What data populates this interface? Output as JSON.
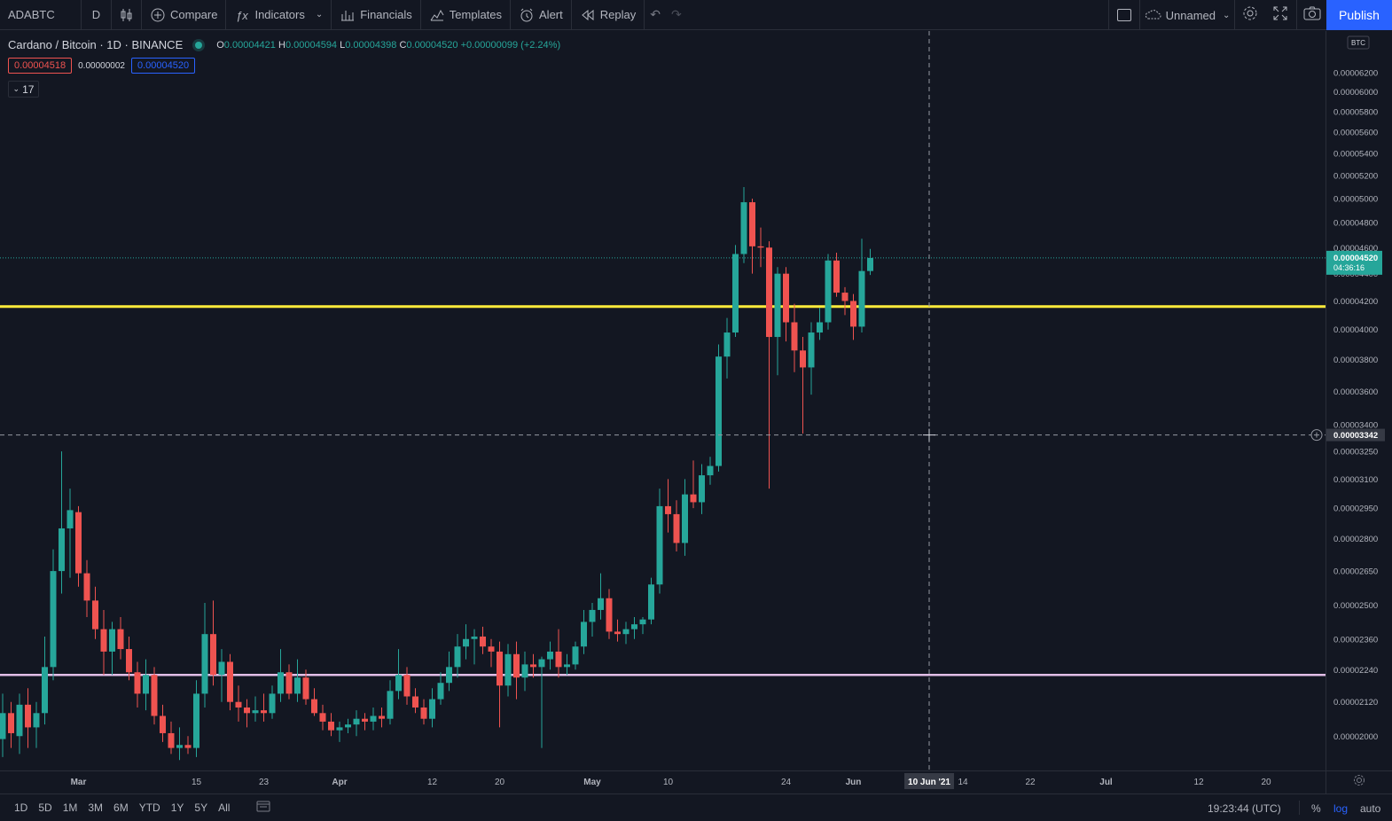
{
  "toolbar": {
    "symbol": "ADABTC",
    "interval": "D",
    "compare": "Compare",
    "indicators": "Indicators",
    "financials": "Financials",
    "templates": "Templates",
    "alert": "Alert",
    "replay": "Replay",
    "layout_name": "Unnamed",
    "publish": "Publish"
  },
  "legend": {
    "title": "Cardano / Bitcoin · 1D · BINANCE",
    "o_label": "O",
    "o": "0.00004421",
    "h_label": "H",
    "h": "0.00004594",
    "l_label": "L",
    "l": "0.00004398",
    "c_label": "C",
    "c": "0.00004520",
    "change": "+0.00000099 (+2.24%)",
    "sell": "0.00004518",
    "spread": "0.00000002",
    "buy": "0.00004520",
    "collapse_count": "17"
  },
  "price_axis": {
    "currency": "BTC",
    "current_price": "0.00004520",
    "countdown": "04:36:16",
    "crosshair_price": "0.00003342"
  },
  "time_axis": {
    "crosshair_date": "10 Jun '21"
  },
  "bottom_bar": {
    "ranges": [
      "1D",
      "5D",
      "1M",
      "3M",
      "6M",
      "YTD",
      "1Y",
      "5Y",
      "All"
    ],
    "clock": "19:23:44 (UTC)",
    "percent": "%",
    "log": "log",
    "auto": "auto"
  },
  "colors": {
    "up": "#26a69a",
    "down": "#ef5350",
    "background": "#131722",
    "support_line": "#ffeb3b",
    "lower_line": "#e1bee7",
    "accent": "#2962ff"
  },
  "chart_data": {
    "type": "candlestick",
    "scale": "log",
    "ylim": [
      1.95e-05,
      6.35e-05
    ],
    "y_ticks": [
      "0.00006200",
      "0.00006000",
      "0.00005800",
      "0.00005600",
      "0.00005400",
      "0.00005200",
      "0.00005000",
      "0.00004800",
      "0.00004600",
      "0.00004400",
      "0.00004200",
      "0.00004000",
      "0.00003800",
      "0.00003600",
      "0.00003400",
      "0.00003250",
      "0.00003100",
      "0.00002950",
      "0.00002800",
      "0.00002650",
      "0.00002500",
      "0.00002360",
      "0.00002240",
      "0.00002120",
      "0.00002000"
    ],
    "x_ticks": [
      {
        "label": "Mar",
        "date": "2021-03-01"
      },
      {
        "label": "15",
        "date": "2021-03-15"
      },
      {
        "label": "23",
        "date": "2021-03-23"
      },
      {
        "label": "Apr",
        "date": "2021-04-01"
      },
      {
        "label": "12",
        "date": "2021-04-12"
      },
      {
        "label": "20",
        "date": "2021-04-20"
      },
      {
        "label": "May",
        "date": "2021-05-01"
      },
      {
        "label": "10",
        "date": "2021-05-10"
      },
      {
        "label": "24",
        "date": "2021-05-24"
      },
      {
        "label": "Jun",
        "date": "2021-06-01"
      },
      {
        "label": "14",
        "date": "2021-06-14"
      },
      {
        "label": "22",
        "date": "2021-06-22"
      },
      {
        "label": "Jul",
        "date": "2021-07-01"
      },
      {
        "label": "12",
        "date": "2021-07-12"
      },
      {
        "label": "20",
        "date": "2021-07-20"
      }
    ],
    "horizontal_lines": [
      {
        "price": 4.16e-05,
        "color": "#ffeb3b"
      },
      {
        "price": 2.22e-05,
        "color": "#e1bee7"
      }
    ],
    "candles": [
      {
        "date": "2021-02-20",
        "o": 1.99e-05,
        "h": 2.15e-05,
        "l": 1.93e-05,
        "c": 2.08e-05
      },
      {
        "date": "2021-02-21",
        "o": 2.08e-05,
        "h": 2.12e-05,
        "l": 1.96e-05,
        "c": 2.01e-05
      },
      {
        "date": "2021-02-22",
        "o": 2e-05,
        "h": 2.15e-05,
        "l": 1.94e-05,
        "c": 2.11e-05
      },
      {
        "date": "2021-02-23",
        "o": 2.11e-05,
        "h": 2.17e-05,
        "l": 1.96e-05,
        "c": 2.03e-05
      },
      {
        "date": "2021-02-24",
        "o": 2.03e-05,
        "h": 2.12e-05,
        "l": 1.96e-05,
        "c": 2.08e-05
      },
      {
        "date": "2021-02-25",
        "o": 2.08e-05,
        "h": 2.37e-05,
        "l": 2.04e-05,
        "c": 2.25e-05
      },
      {
        "date": "2021-02-26",
        "o": 2.25e-05,
        "h": 2.75e-05,
        "l": 2.2e-05,
        "c": 2.65e-05
      },
      {
        "date": "2021-02-27",
        "o": 2.65e-05,
        "h": 3.25e-05,
        "l": 2.55e-05,
        "c": 2.85e-05
      },
      {
        "date": "2021-02-28",
        "o": 2.85e-05,
        "h": 3.05e-05,
        "l": 2.62e-05,
        "c": 2.94e-05
      },
      {
        "date": "2021-03-01",
        "o": 2.93e-05,
        "h": 2.96e-05,
        "l": 2.58e-05,
        "c": 2.64e-05
      },
      {
        "date": "2021-03-02",
        "o": 2.64e-05,
        "h": 2.7e-05,
        "l": 2.45e-05,
        "c": 2.52e-05
      },
      {
        "date": "2021-03-03",
        "o": 2.52e-05,
        "h": 2.58e-05,
        "l": 2.36e-05,
        "c": 2.4e-05
      },
      {
        "date": "2021-03-04",
        "o": 2.4e-05,
        "h": 2.48e-05,
        "l": 2.22e-05,
        "c": 2.31e-05
      },
      {
        "date": "2021-03-05",
        "o": 2.31e-05,
        "h": 2.43e-05,
        "l": 2.22e-05,
        "c": 2.4e-05
      },
      {
        "date": "2021-03-06",
        "o": 2.4e-05,
        "h": 2.45e-05,
        "l": 2.28e-05,
        "c": 2.32e-05
      },
      {
        "date": "2021-03-07",
        "o": 2.32e-05,
        "h": 2.37e-05,
        "l": 2.2e-05,
        "c": 2.23e-05
      },
      {
        "date": "2021-03-08",
        "o": 2.23e-05,
        "h": 2.27e-05,
        "l": 2.1e-05,
        "c": 2.15e-05
      },
      {
        "date": "2021-03-09",
        "o": 2.15e-05,
        "h": 2.28e-05,
        "l": 2.09e-05,
        "c": 2.22e-05
      },
      {
        "date": "2021-03-10",
        "o": 2.22e-05,
        "h": 2.25e-05,
        "l": 2.04e-05,
        "c": 2.07e-05
      },
      {
        "date": "2021-03-11",
        "o": 2.07e-05,
        "h": 2.11e-05,
        "l": 1.98e-05,
        "c": 2.01e-05
      },
      {
        "date": "2021-03-12",
        "o": 2.01e-05,
        "h": 2.05e-05,
        "l": 1.94e-05,
        "c": 1.96e-05
      },
      {
        "date": "2021-03-13",
        "o": 1.96e-05,
        "h": 2.03e-05,
        "l": 1.92e-05,
        "c": 1.97e-05
      },
      {
        "date": "2021-03-14",
        "o": 1.97e-05,
        "h": 2e-05,
        "l": 1.94e-05,
        "c": 1.96e-05
      },
      {
        "date": "2021-03-15",
        "o": 1.96e-05,
        "h": 2.2e-05,
        "l": 1.93e-05,
        "c": 2.15e-05
      },
      {
        "date": "2021-03-16",
        "o": 2.15e-05,
        "h": 2.51e-05,
        "l": 2.1e-05,
        "c": 2.38e-05
      },
      {
        "date": "2021-03-17",
        "o": 2.38e-05,
        "h": 2.52e-05,
        "l": 2.18e-05,
        "c": 2.22e-05
      },
      {
        "date": "2021-03-18",
        "o": 2.22e-05,
        "h": 2.32e-05,
        "l": 2.12e-05,
        "c": 2.27e-05
      },
      {
        "date": "2021-03-19",
        "o": 2.27e-05,
        "h": 2.3e-05,
        "l": 2.09e-05,
        "c": 2.12e-05
      },
      {
        "date": "2021-03-20",
        "o": 2.12e-05,
        "h": 2.18e-05,
        "l": 2.05e-05,
        "c": 2.1e-05
      },
      {
        "date": "2021-03-21",
        "o": 2.1e-05,
        "h": 2.13e-05,
        "l": 2.03e-05,
        "c": 2.08e-05
      },
      {
        "date": "2021-03-22",
        "o": 2.08e-05,
        "h": 2.14e-05,
        "l": 2.05e-05,
        "c": 2.09e-05
      },
      {
        "date": "2021-03-23",
        "o": 2.09e-05,
        "h": 2.15e-05,
        "l": 2.05e-05,
        "c": 2.08e-05
      },
      {
        "date": "2021-03-24",
        "o": 2.08e-05,
        "h": 2.18e-05,
        "l": 2.06e-05,
        "c": 2.15e-05
      },
      {
        "date": "2021-03-25",
        "o": 2.15e-05,
        "h": 2.32e-05,
        "l": 2.12e-05,
        "c": 2.23e-05
      },
      {
        "date": "2021-03-26",
        "o": 2.23e-05,
        "h": 2.26e-05,
        "l": 2.13e-05,
        "c": 2.15e-05
      },
      {
        "date": "2021-03-27",
        "o": 2.15e-05,
        "h": 2.28e-05,
        "l": 2.12e-05,
        "c": 2.21e-05
      },
      {
        "date": "2021-03-28",
        "o": 2.21e-05,
        "h": 2.24e-05,
        "l": 2.11e-05,
        "c": 2.13e-05
      },
      {
        "date": "2021-03-29",
        "o": 2.13e-05,
        "h": 2.17e-05,
        "l": 2.07e-05,
        "c": 2.08e-05
      },
      {
        "date": "2021-03-30",
        "o": 2.08e-05,
        "h": 2.11e-05,
        "l": 2.02e-05,
        "c": 2.05e-05
      },
      {
        "date": "2021-03-31",
        "o": 2.05e-05,
        "h": 2.08e-05,
        "l": 2e-05,
        "c": 2.02e-05
      },
      {
        "date": "2021-04-01",
        "o": 2.02e-05,
        "h": 2.05e-05,
        "l": 1.98e-05,
        "c": 2.03e-05
      },
      {
        "date": "2021-04-02",
        "o": 2.03e-05,
        "h": 2.06e-05,
        "l": 2.01e-05,
        "c": 2.04e-05
      },
      {
        "date": "2021-04-03",
        "o": 2.04e-05,
        "h": 2.09e-05,
        "l": 2e-05,
        "c": 2.06e-05
      },
      {
        "date": "2021-04-04",
        "o": 2.06e-05,
        "h": 2.08e-05,
        "l": 2.02e-05,
        "c": 2.05e-05
      },
      {
        "date": "2021-04-05",
        "o": 2.05e-05,
        "h": 2.1e-05,
        "l": 2.02e-05,
        "c": 2.07e-05
      },
      {
        "date": "2021-04-06",
        "o": 2.07e-05,
        "h": 2.1e-05,
        "l": 2.03e-05,
        "c": 2.06e-05
      },
      {
        "date": "2021-04-07",
        "o": 2.06e-05,
        "h": 2.2e-05,
        "l": 2.04e-05,
        "c": 2.16e-05
      },
      {
        "date": "2021-04-08",
        "o": 2.16e-05,
        "h": 2.32e-05,
        "l": 2.13e-05,
        "c": 2.22e-05
      },
      {
        "date": "2021-04-09",
        "o": 2.22e-05,
        "h": 2.25e-05,
        "l": 2.11e-05,
        "c": 2.14e-05
      },
      {
        "date": "2021-04-10",
        "o": 2.14e-05,
        "h": 2.17e-05,
        "l": 2.08e-05,
        "c": 2.1e-05
      },
      {
        "date": "2021-04-11",
        "o": 2.1e-05,
        "h": 2.13e-05,
        "l": 2.04e-05,
        "c": 2.06e-05
      },
      {
        "date": "2021-04-12",
        "o": 2.06e-05,
        "h": 2.17e-05,
        "l": 2.03e-05,
        "c": 2.13e-05
      },
      {
        "date": "2021-04-13",
        "o": 2.13e-05,
        "h": 2.23e-05,
        "l": 2.11e-05,
        "c": 2.19e-05
      },
      {
        "date": "2021-04-14",
        "o": 2.19e-05,
        "h": 2.31e-05,
        "l": 2.16e-05,
        "c": 2.25e-05
      },
      {
        "date": "2021-04-15",
        "o": 2.25e-05,
        "h": 2.38e-05,
        "l": 2.21e-05,
        "c": 2.33e-05
      },
      {
        "date": "2021-04-16",
        "o": 2.33e-05,
        "h": 2.42e-05,
        "l": 2.28e-05,
        "c": 2.36e-05
      },
      {
        "date": "2021-04-17",
        "o": 2.36e-05,
        "h": 2.4e-05,
        "l": 2.26e-05,
        "c": 2.37e-05
      },
      {
        "date": "2021-04-18",
        "o": 2.37e-05,
        "h": 2.41e-05,
        "l": 2.3e-05,
        "c": 2.33e-05
      },
      {
        "date": "2021-04-19",
        "o": 2.33e-05,
        "h": 2.36e-05,
        "l": 2.25e-05,
        "c": 2.31e-05
      },
      {
        "date": "2021-04-20",
        "o": 2.31e-05,
        "h": 2.35e-05,
        "l": 2.03e-05,
        "c": 2.18e-05
      },
      {
        "date": "2021-04-21",
        "o": 2.18e-05,
        "h": 2.34e-05,
        "l": 2.14e-05,
        "c": 2.3e-05
      },
      {
        "date": "2021-04-22",
        "o": 2.3e-05,
        "h": 2.35e-05,
        "l": 2.13e-05,
        "c": 2.21e-05
      },
      {
        "date": "2021-04-23",
        "o": 2.21e-05,
        "h": 2.31e-05,
        "l": 2.16e-05,
        "c": 2.26e-05
      },
      {
        "date": "2021-04-24",
        "o": 2.26e-05,
        "h": 2.3e-05,
        "l": 2.21e-05,
        "c": 2.25e-05
      },
      {
        "date": "2021-04-25",
        "o": 2.25e-05,
        "h": 2.29e-05,
        "l": 1.96e-05,
        "c": 2.28e-05
      },
      {
        "date": "2021-04-26",
        "o": 2.28e-05,
        "h": 2.35e-05,
        "l": 2.24e-05,
        "c": 2.31e-05
      },
      {
        "date": "2021-04-27",
        "o": 2.31e-05,
        "h": 2.4e-05,
        "l": 2.21e-05,
        "c": 2.25e-05
      },
      {
        "date": "2021-04-28",
        "o": 2.25e-05,
        "h": 2.3e-05,
        "l": 2.22e-05,
        "c": 2.26e-05
      },
      {
        "date": "2021-04-29",
        "o": 2.26e-05,
        "h": 2.35e-05,
        "l": 2.24e-05,
        "c": 2.33e-05
      },
      {
        "date": "2021-04-30",
        "o": 2.33e-05,
        "h": 2.48e-05,
        "l": 2.3e-05,
        "c": 2.43e-05
      },
      {
        "date": "2021-05-01",
        "o": 2.43e-05,
        "h": 2.51e-05,
        "l": 2.37e-05,
        "c": 2.48e-05
      },
      {
        "date": "2021-05-02",
        "o": 2.48e-05,
        "h": 2.64e-05,
        "l": 2.44e-05,
        "c": 2.53e-05
      },
      {
        "date": "2021-05-03",
        "o": 2.53e-05,
        "h": 2.57e-05,
        "l": 2.36e-05,
        "c": 2.39e-05
      },
      {
        "date": "2021-05-04",
        "o": 2.39e-05,
        "h": 2.44e-05,
        "l": 2.35e-05,
        "c": 2.38e-05
      },
      {
        "date": "2021-05-05",
        "o": 2.38e-05,
        "h": 2.43e-05,
        "l": 2.34e-05,
        "c": 2.4e-05
      },
      {
        "date": "2021-05-06",
        "o": 2.4e-05,
        "h": 2.45e-05,
        "l": 2.36e-05,
        "c": 2.42e-05
      },
      {
        "date": "2021-05-07",
        "o": 2.42e-05,
        "h": 2.45e-05,
        "l": 2.38e-05,
        "c": 2.44e-05
      },
      {
        "date": "2021-05-08",
        "o": 2.44e-05,
        "h": 2.62e-05,
        "l": 2.42e-05,
        "c": 2.59e-05
      },
      {
        "date": "2021-05-09",
        "o": 2.59e-05,
        "h": 3.05e-05,
        "l": 2.55e-05,
        "c": 2.96e-05
      },
      {
        "date": "2021-05-10",
        "o": 2.96e-05,
        "h": 3.1e-05,
        "l": 2.83e-05,
        "c": 2.92e-05
      },
      {
        "date": "2021-05-11",
        "o": 2.92e-05,
        "h": 2.99e-05,
        "l": 2.74e-05,
        "c": 2.78e-05
      },
      {
        "date": "2021-05-12",
        "o": 2.78e-05,
        "h": 3.1e-05,
        "l": 2.72e-05,
        "c": 3.02e-05
      },
      {
        "date": "2021-05-13",
        "o": 3.02e-05,
        "h": 3.2e-05,
        "l": 2.95e-05,
        "c": 2.98e-05
      },
      {
        "date": "2021-05-14",
        "o": 2.98e-05,
        "h": 3.18e-05,
        "l": 2.92e-05,
        "c": 3.12e-05
      },
      {
        "date": "2021-05-15",
        "o": 3.12e-05,
        "h": 3.22e-05,
        "l": 3.07e-05,
        "c": 3.17e-05
      },
      {
        "date": "2021-05-16",
        "o": 3.17e-05,
        "h": 3.9e-05,
        "l": 3.14e-05,
        "c": 3.82e-05
      },
      {
        "date": "2021-05-17",
        "o": 3.82e-05,
        "h": 4.08e-05,
        "l": 3.68e-05,
        "c": 3.98e-05
      },
      {
        "date": "2021-05-18",
        "o": 3.98e-05,
        "h": 4.62e-05,
        "l": 3.95e-05,
        "c": 4.55e-05
      },
      {
        "date": "2021-05-19",
        "o": 4.55e-05,
        "h": 5.1e-05,
        "l": 4.48e-05,
        "c": 4.97e-05
      },
      {
        "date": "2021-05-20",
        "o": 4.97e-05,
        "h": 5e-05,
        "l": 4.4e-05,
        "c": 4.61e-05
      },
      {
        "date": "2021-05-21",
        "o": 4.61e-05,
        "h": 4.76e-05,
        "l": 4.45e-05,
        "c": 4.6e-05
      },
      {
        "date": "2021-05-22",
        "o": 4.6e-05,
        "h": 4.65e-05,
        "l": 3.05e-05,
        "c": 3.95e-05
      },
      {
        "date": "2021-05-23",
        "o": 3.95e-05,
        "h": 4.45e-05,
        "l": 3.7e-05,
        "c": 4.4e-05
      },
      {
        "date": "2021-05-24",
        "o": 4.4e-05,
        "h": 4.45e-05,
        "l": 3.92e-05,
        "c": 4.05e-05
      },
      {
        "date": "2021-05-25",
        "o": 4.05e-05,
        "h": 4.18e-05,
        "l": 3.72e-05,
        "c": 3.86e-05
      },
      {
        "date": "2021-05-26",
        "o": 3.86e-05,
        "h": 3.95e-05,
        "l": 3.35e-05,
        "c": 3.75e-05
      },
      {
        "date": "2021-05-27",
        "o": 3.75e-05,
        "h": 4.05e-05,
        "l": 3.58e-05,
        "c": 3.98e-05
      },
      {
        "date": "2021-05-28",
        "o": 3.98e-05,
        "h": 4.15e-05,
        "l": 3.93e-05,
        "c": 4.05e-05
      },
      {
        "date": "2021-05-29",
        "o": 4.05e-05,
        "h": 4.55e-05,
        "l": 4e-05,
        "c": 4.5e-05
      },
      {
        "date": "2021-05-30",
        "o": 4.5e-05,
        "h": 4.56e-05,
        "l": 4.23e-05,
        "c": 4.26e-05
      },
      {
        "date": "2021-05-31",
        "o": 4.26e-05,
        "h": 4.3e-05,
        "l": 4.1e-05,
        "c": 4.2e-05
      },
      {
        "date": "2021-06-01",
        "o": 4.2e-05,
        "h": 4.25e-05,
        "l": 3.93e-05,
        "c": 4.02e-05
      },
      {
        "date": "2021-06-02",
        "o": 4.02e-05,
        "h": 4.67e-05,
        "l": 3.98e-05,
        "c": 4.42e-05
      },
      {
        "date": "2021-06-03",
        "o": 4.42e-05,
        "h": 4.59e-05,
        "l": 4.39e-05,
        "c": 4.52e-05
      }
    ]
  }
}
